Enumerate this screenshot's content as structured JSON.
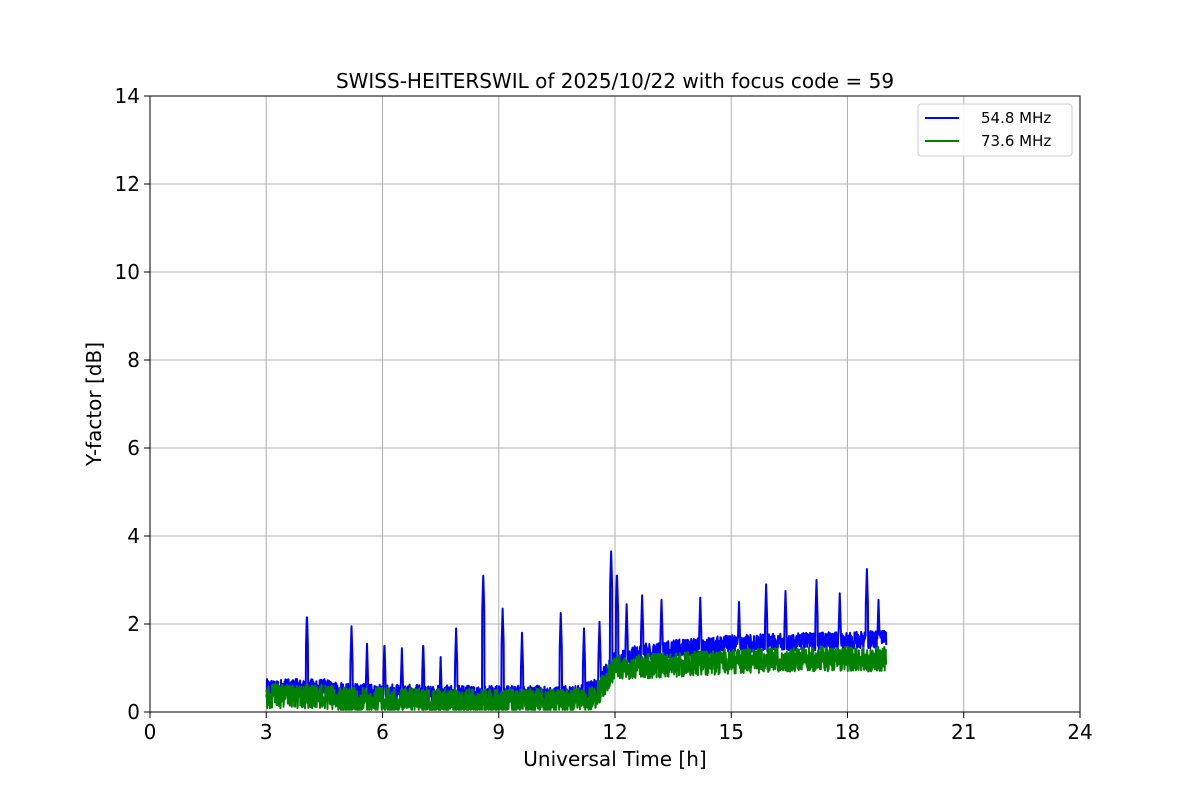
{
  "chart_data": {
    "type": "line",
    "title": "SWISS-HEITERSWIL of 2025/10/22 with focus code = 59",
    "xlabel": "Universal Time [h]",
    "ylabel": "Y-factor [dB]",
    "xlim": [
      0,
      24
    ],
    "ylim": [
      0,
      14
    ],
    "xticks": [
      0,
      3,
      6,
      9,
      12,
      15,
      18,
      21,
      24
    ],
    "yticks": [
      0,
      2,
      4,
      6,
      8,
      10,
      12,
      14
    ],
    "grid": true,
    "legend_position": "top-right",
    "series": [
      {
        "name": "54.8 MHz",
        "color": "#0000ff",
        "baseline_profile": [
          [
            3.0,
            0.55
          ],
          [
            4.5,
            0.55
          ],
          [
            5.0,
            0.45
          ],
          [
            8.0,
            0.4
          ],
          [
            11.0,
            0.4
          ],
          [
            11.5,
            0.55
          ],
          [
            12.0,
            1.2
          ],
          [
            13.0,
            1.4
          ],
          [
            15.0,
            1.55
          ],
          [
            17.0,
            1.6
          ],
          [
            19.0,
            1.65
          ]
        ],
        "noise_amplitude": 0.25,
        "spikes": [
          [
            4.05,
            2.25
          ],
          [
            5.2,
            1.95
          ],
          [
            5.6,
            1.55
          ],
          [
            6.05,
            1.6
          ],
          [
            6.5,
            1.45
          ],
          [
            7.05,
            1.6
          ],
          [
            7.5,
            1.25
          ],
          [
            7.9,
            1.9
          ],
          [
            8.6,
            3.1
          ],
          [
            9.1,
            2.35
          ],
          [
            9.6,
            1.8
          ],
          [
            10.6,
            2.25
          ],
          [
            11.2,
            1.9
          ],
          [
            11.6,
            2.05
          ],
          [
            11.9,
            3.65
          ],
          [
            12.05,
            3.2
          ],
          [
            12.3,
            2.45
          ],
          [
            12.7,
            2.65
          ],
          [
            13.2,
            2.55
          ],
          [
            14.2,
            2.6
          ],
          [
            15.2,
            2.5
          ],
          [
            15.9,
            2.9
          ],
          [
            16.4,
            2.75
          ],
          [
            17.2,
            3.0
          ],
          [
            17.8,
            2.7
          ],
          [
            18.5,
            3.25
          ],
          [
            18.8,
            2.55
          ]
        ]
      },
      {
        "name": "73.6 MHz",
        "color": "#008000",
        "baseline_profile": [
          [
            3.0,
            0.35
          ],
          [
            4.5,
            0.35
          ],
          [
            5.0,
            0.28
          ],
          [
            8.0,
            0.25
          ],
          [
            11.0,
            0.25
          ],
          [
            11.5,
            0.35
          ],
          [
            12.0,
            1.0
          ],
          [
            13.0,
            1.05
          ],
          [
            15.0,
            1.15
          ],
          [
            17.0,
            1.2
          ],
          [
            19.0,
            1.2
          ]
        ],
        "noise_amplitude": 0.35,
        "spikes": []
      }
    ]
  }
}
